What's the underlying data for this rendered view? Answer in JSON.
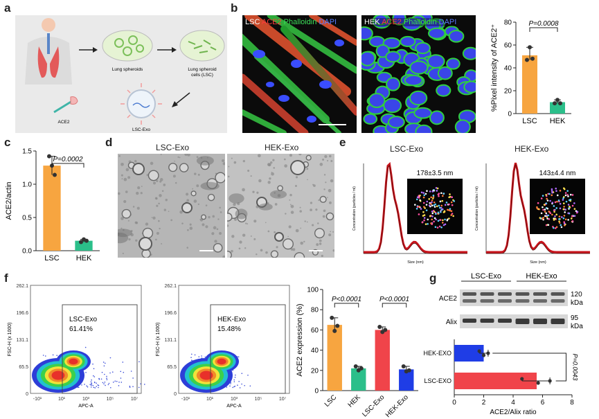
{
  "panels": {
    "a": {
      "label": "a",
      "spheroid_label": "Lung spheroids",
      "lsc_label_1": "Lung spheroid",
      "lsc_label_2": "cells (LSC)",
      "ace2_label": "ACE2",
      "exo_label": "LSC-Exo"
    },
    "b": {
      "label": "b",
      "img1": {
        "cell": "LSC",
        "ace2": "ACE2",
        "phalloidin": "Phalloidin",
        "dapi": "DAPI"
      },
      "img2": {
        "cell": "HEK",
        "ace2": "ACE2",
        "phalloidin": "Phalloidin",
        "dapi": "DAPI"
      }
    },
    "c": {
      "label": "c"
    },
    "d": {
      "label": "d",
      "left_title": "LSC-Exo",
      "right_title": "HEK-Exo"
    },
    "e": {
      "label": "e",
      "left_title": "LSC-Exo",
      "right_title": "HEK-Exo",
      "left_size": "178±3.5 nm",
      "right_size": "143±4.4 nm",
      "ylabel": "Concentration (particles / ml)",
      "xlabel": "Size (nm)"
    },
    "f": {
      "label": "f",
      "left_gate": "LSC-Exo",
      "left_pct": "61.41%",
      "right_gate": "HEK-Exo",
      "right_pct": "15.48%",
      "yticks": [
        "262.1",
        "196.6",
        "131.1",
        "65.5",
        "0"
      ],
      "xticks": [
        "-10¹",
        "10¹",
        "10³",
        "10⁵",
        "10⁷"
      ],
      "ylabel": "FSC-H (x 1000)",
      "xlabel": "APC-A"
    },
    "g": {
      "label": "g",
      "header_left": "LSC-Exo",
      "header_right": "HEK-Exo",
      "row1": "ACE2",
      "row1_kda": "120",
      "row2": "Alix",
      "row2_kda": "95",
      "kda": "kDa"
    }
  },
  "colors": {
    "orange": "#f7a540",
    "green": "#2bbf8a",
    "red": "#f0444a",
    "blue": "#1f3de6",
    "darkred": "#c8141c"
  },
  "chart_data": [
    {
      "id": "b-bar",
      "type": "bar",
      "categories": [
        "LSC",
        "HEK"
      ],
      "values": [
        51,
        10
      ],
      "points": [
        [
          47,
          58,
          48
        ],
        [
          9,
          12,
          9
        ]
      ],
      "ylabel": "%Pixel intensity of ACE2⁺",
      "ylim": [
        0,
        80
      ],
      "yticks": [
        0,
        20,
        40,
        60,
        80
      ],
      "pvalue": "P=0.0008"
    },
    {
      "id": "c-bar",
      "type": "bar",
      "categories": [
        "LSC",
        "HEK"
      ],
      "values": [
        1.28,
        0.15
      ],
      "points": [
        [
          1.42,
          1.28,
          1.14
        ],
        [
          0.13,
          0.17,
          0.15
        ]
      ],
      "ylabel": "ACE2/actin",
      "ylim": [
        0,
        1.5
      ],
      "yticks": [
        0.0,
        0.5,
        1.0,
        1.5
      ],
      "pvalue": "P=0.0002"
    },
    {
      "id": "f-bar",
      "type": "bar",
      "categories": [
        "LSC",
        "HEK",
        "LSC-Exo",
        "HEK-Exo"
      ],
      "values": [
        65,
        22,
        60,
        21
      ],
      "points": [
        [
          72,
          59,
          64
        ],
        [
          24,
          20,
          22
        ],
        [
          63,
          58,
          60
        ],
        [
          24,
          19,
          20
        ]
      ],
      "ylabel": "ACE2 expression (%)",
      "ylim": [
        0,
        100
      ],
      "yticks": [
        0,
        20,
        40,
        60,
        80,
        100
      ],
      "pvalues": [
        "P<0.0001",
        "P<0.0001"
      ]
    },
    {
      "id": "g-bar",
      "type": "bar",
      "orientation": "horizontal",
      "categories": [
        "HEK-EXO",
        "LSC-EXO"
      ],
      "values": [
        2.0,
        5.6
      ],
      "points": [
        [
          1.7,
          2.3,
          2.0
        ],
        [
          4.6,
          6.5,
          5.7
        ]
      ],
      "xlabel": "ACE2/Alix ratio",
      "xlim": [
        0,
        8
      ],
      "xticks": [
        0,
        2,
        4,
        6,
        8
      ],
      "pvalue": "P=0.0043"
    }
  ]
}
